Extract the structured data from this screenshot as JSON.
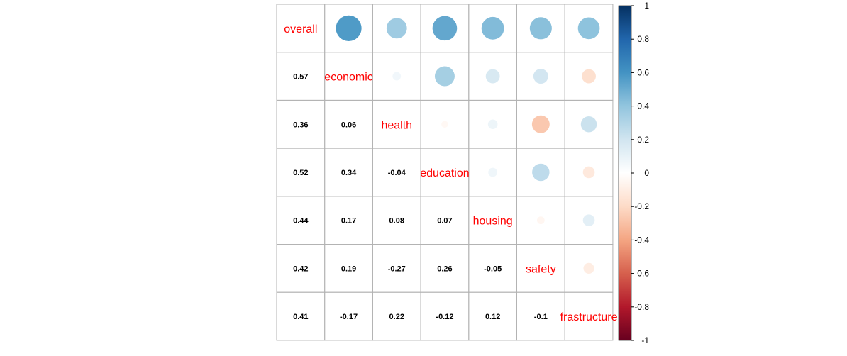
{
  "chart_data": {
    "type": "heatmap",
    "variables": [
      "overall",
      "economic",
      "health",
      "education",
      "housing",
      "safety",
      "frastructure"
    ],
    "matrix": [
      [
        1,
        0.57,
        0.36,
        0.52,
        0.44,
        0.42,
        0.41
      ],
      [
        0.57,
        1,
        0.06,
        0.34,
        0.17,
        0.19,
        -0.17
      ],
      [
        0.36,
        0.06,
        1,
        -0.04,
        0.08,
        -0.27,
        0.22
      ],
      [
        0.52,
        0.34,
        -0.04,
        1,
        0.07,
        0.26,
        -0.12
      ],
      [
        0.44,
        0.17,
        0.08,
        0.07,
        1,
        -0.05,
        0.12
      ],
      [
        0.42,
        0.19,
        -0.27,
        0.26,
        -0.05,
        1,
        -0.1
      ],
      [
        0.41,
        -0.17,
        0.22,
        -0.12,
        0.12,
        -0.1,
        1
      ]
    ],
    "lower_labels": [
      [
        "0.57"
      ],
      [
        "0.36",
        "0.06"
      ],
      [
        "0.52",
        "0.34",
        "-0.04"
      ],
      [
        "0.44",
        "0.17",
        "0.08",
        "0.07"
      ],
      [
        "0.42",
        "0.19",
        "-0.27",
        "0.26",
        "-0.05"
      ],
      [
        "0.41",
        "-0.17",
        "0.22",
        "-0.12",
        "0.12",
        "-0.1"
      ]
    ],
    "upper_method": "circle",
    "lower_method": "number",
    "diagonal_label_color": "#ff0000",
    "colorbar": {
      "range": [
        -1,
        1
      ],
      "ticks": [
        "1",
        "0.8",
        "0.6",
        "0.4",
        "0.2",
        "0",
        "-0.2",
        "-0.4",
        "-0.6",
        "-0.8",
        "-1"
      ],
      "colors_low_to_high": [
        "#67001F",
        "#B2182B",
        "#D6604D",
        "#F4A582",
        "#FDDBC7",
        "#FFFFFF",
        "#D1E5F0",
        "#92C5DE",
        "#4393C3",
        "#2166AC",
        "#053061"
      ]
    }
  }
}
